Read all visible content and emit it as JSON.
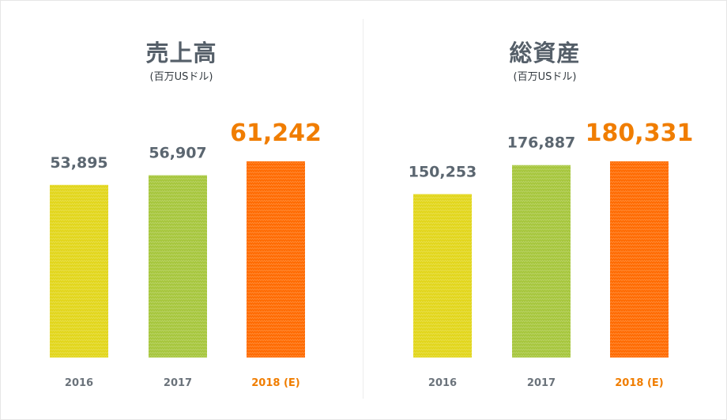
{
  "chart_data": [
    {
      "type": "bar",
      "title": "売上高",
      "subtitle": "(百万USドル)",
      "categories": [
        "2016",
        "2017",
        "2018 (E)"
      ],
      "values": [
        53895,
        56907,
        61242
      ],
      "value_labels": [
        "53,895",
        "56,907",
        "61,242"
      ],
      "highlight_index": 2,
      "ylim": [
        0,
        61242
      ],
      "grid": false
    },
    {
      "type": "bar",
      "title": "総資産",
      "subtitle": "(百万USドル)",
      "categories": [
        "2016",
        "2017",
        "2018 (E)"
      ],
      "values": [
        150253,
        176887,
        180331
      ],
      "value_labels": [
        "150,253",
        "176,887",
        "180,331"
      ],
      "highlight_index": 2,
      "ylim": [
        0,
        180331
      ],
      "grid": false
    }
  ],
  "colors": {
    "bar_2016": "#e2d61a",
    "bar_2017": "#a6c63c",
    "bar_2018": "#ff6a00",
    "label_default": "#5b6670",
    "label_highlight": "#f07d00",
    "tick_default": "#6b737b",
    "tick_highlight": "#f07d00"
  }
}
